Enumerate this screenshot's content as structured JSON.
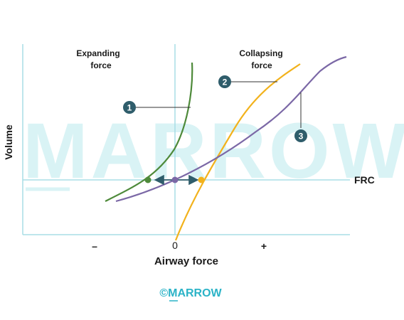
{
  "watermark": {
    "text": "MARROW"
  },
  "labels": {
    "expanding_line1": "Expanding",
    "expanding_line2": "force",
    "collapsing_line1": "Collapsing",
    "collapsing_line2": "force",
    "y_axis": "Volume",
    "x_axis": "Airway force",
    "frc": "FRC",
    "minus": "–",
    "zero": "0",
    "plus": "+"
  },
  "badges": [
    {
      "number": "1"
    },
    {
      "number": "2"
    },
    {
      "number": "3"
    }
  ],
  "copyright": "©MARROW",
  "colors": {
    "axis": "#a8dde6",
    "curve1": "#4e8a3a",
    "curve2": "#f2b21c",
    "curve3": "#7b68a6",
    "badge": "#2f5d6b",
    "arrow": "#2f5d6b",
    "watermark": "#d9f3f5",
    "copyright": "#2bb3c7"
  }
}
